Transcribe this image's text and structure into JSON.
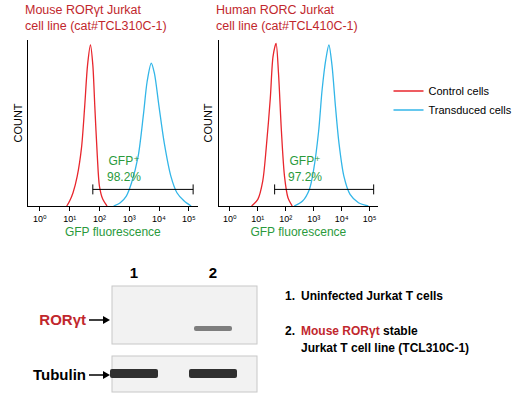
{
  "chart_data": [
    {
      "type": "line",
      "title": [
        "Mouse RORγt Jurkat",
        "cell line (cat#TCL310C-1)"
      ],
      "x_label": "GFP fluorescence",
      "y_label": "COUNT",
      "log": "x",
      "grid": false,
      "tick_labels": "x",
      "xlim": [
        0.4,
        200000
      ],
      "ylim": [
        0,
        100
      ],
      "xticks": [
        {
          "value": 1,
          "label": "10⁰"
        },
        {
          "value": 10,
          "label": "10¹"
        },
        {
          "value": 100,
          "label": "10²"
        },
        {
          "value": 1000,
          "label": "10³"
        },
        {
          "value": 10000,
          "label": "10⁴"
        },
        {
          "value": 100000,
          "label": "10⁵"
        }
      ],
      "series": [
        {
          "name": "Control cells",
          "color": "#e8262d",
          "x": [
            8,
            10,
            13,
            18,
            25,
            32,
            40,
            50,
            60,
            70,
            85,
            100,
            130,
            180
          ],
          "values": [
            0,
            3,
            8,
            18,
            35,
            60,
            85,
            97,
            85,
            60,
            30,
            12,
            4,
            0
          ]
        },
        {
          "name": "Transduced cells",
          "color": "#33b6e8",
          "x": [
            300,
            500,
            800,
            1200,
            2000,
            3000,
            4000,
            5500,
            7000,
            10000,
            15000,
            25000,
            40000,
            70000,
            120000
          ],
          "values": [
            0,
            2,
            6,
            14,
            30,
            55,
            75,
            86,
            80,
            60,
            38,
            18,
            8,
            3,
            0
          ]
        }
      ],
      "gate": {
        "x": [
          60,
          140000
        ],
        "y": 10,
        "text": [
          "GFP⁺",
          "98.2%"
        ]
      }
    },
    {
      "type": "line",
      "title": [
        "Human RORC Jurkat",
        "cell line (cat#TCL410C-1)"
      ],
      "x_label": "GFP fluorescence",
      "y_label": "COUNT",
      "log": "x",
      "grid": false,
      "tick_labels": "x",
      "legend": "right",
      "xlim": [
        0.4,
        200000
      ],
      "ylim": [
        0,
        100
      ],
      "xticks": [
        {
          "value": 1,
          "label": "10⁰"
        },
        {
          "value": 10,
          "label": "10¹"
        },
        {
          "value": 100,
          "label": "10²"
        },
        {
          "value": 1000,
          "label": "10³"
        },
        {
          "value": 10000,
          "label": "10⁴"
        },
        {
          "value": 100000,
          "label": "10⁵"
        }
      ],
      "series": [
        {
          "name": "Control cells",
          "color": "#e8262d",
          "x": [
            6,
            10,
            15,
            20,
            28,
            35,
            45,
            55,
            70,
            90,
            120,
            170
          ],
          "values": [
            0,
            4,
            15,
            35,
            65,
            90,
            98,
            80,
            45,
            18,
            5,
            0
          ]
        },
        {
          "name": "Transduced cells",
          "color": "#33b6e8",
          "x": [
            200,
            400,
            700,
            1000,
            1500,
            2000,
            2700,
            3500,
            4500,
            6000,
            8000,
            12000,
            20000,
            40000,
            90000
          ],
          "values": [
            0,
            3,
            10,
            22,
            45,
            70,
            88,
            97,
            85,
            60,
            38,
            18,
            7,
            2,
            0
          ]
        }
      ],
      "gate": {
        "x": [
          40,
          140000
        ],
        "y": 10,
        "text": [
          "GFP⁺",
          "97.2%"
        ]
      }
    }
  ],
  "blot": {
    "lanes": [
      "1",
      "2"
    ],
    "rows": [
      {
        "label": "RORγt",
        "color": "#c1272d",
        "bands": [
          0,
          0.6
        ]
      },
      {
        "label": "Tubulin",
        "color": "#000000",
        "bands": [
          1,
          1
        ]
      }
    ],
    "key": [
      {
        "number": "1.",
        "lines": [
          [
            {
              "text": "Uninfected Jurkat T cells"
            }
          ]
        ]
      },
      {
        "number": "2.",
        "lines": [
          [
            {
              "text": "Mouse RORγt",
              "color": "#c1272d"
            },
            {
              "text": " stable"
            }
          ],
          [
            {
              "text": "Jurkat T cell line (TCL310C-1)"
            }
          ]
        ]
      }
    ]
  }
}
